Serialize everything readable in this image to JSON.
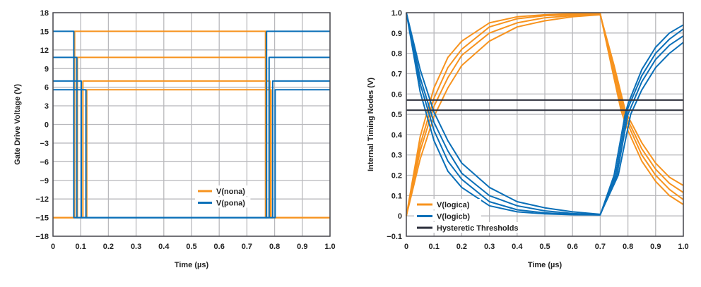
{
  "chart_data": [
    {
      "type": "line",
      "title": "",
      "xlabel": "Time (µs)",
      "ylabel": "Gate Drive Voltage (V)",
      "xlim": [
        0,
        1.0
      ],
      "ylim": [
        -18,
        18
      ],
      "xticks": [
        "0",
        "0.1",
        "0.2",
        "0.3",
        "0.4",
        "0.5",
        "0.6",
        "0.7",
        "0.8",
        "0.9",
        "1.0"
      ],
      "yticks": [
        "18",
        "15",
        "12",
        "9",
        "6",
        "3",
        "0",
        "−3",
        "−6",
        "−9",
        "−12",
        "−15",
        "−18"
      ],
      "grid": true,
      "legend_placement": "bottom-right",
      "series": [
        {
          "name": "V(nona)",
          "color": "#f7931e",
          "traces": [
            [
              [
                0,
                -15
              ],
              [
                0.078,
                -15
              ],
              [
                0.078,
                15
              ],
              [
                0.767,
                15
              ],
              [
                0.767,
                -15
              ],
              [
                1,
                -15
              ]
            ],
            [
              [
                0,
                -15
              ],
              [
                0.088,
                -15
              ],
              [
                0.088,
                10.8
              ],
              [
                0.769,
                10.8
              ],
              [
                0.769,
                -15
              ],
              [
                1,
                -15
              ]
            ],
            [
              [
                0,
                -15
              ],
              [
                0.108,
                -15
              ],
              [
                0.108,
                7
              ],
              [
                0.783,
                7
              ],
              [
                0.783,
                -15
              ],
              [
                1,
                -15
              ]
            ],
            [
              [
                0,
                -15
              ],
              [
                0.122,
                -15
              ],
              [
                0.122,
                5.6
              ],
              [
                0.787,
                5.6
              ],
              [
                0.787,
                -15
              ],
              [
                1,
                -15
              ]
            ]
          ]
        },
        {
          "name": "V(pona)",
          "color": "#0a6fb8",
          "traces": [
            [
              [
                0,
                15
              ],
              [
                0.075,
                15
              ],
              [
                0.075,
                -15
              ],
              [
                0.771,
                -15
              ],
              [
                0.771,
                15
              ],
              [
                1,
                15
              ]
            ],
            [
              [
                0,
                10.8
              ],
              [
                0.086,
                10.8
              ],
              [
                0.086,
                -15
              ],
              [
                0.78,
                -15
              ],
              [
                0.78,
                10.8
              ],
              [
                1,
                10.8
              ]
            ],
            [
              [
                0,
                7
              ],
              [
                0.102,
                7
              ],
              [
                0.102,
                -15
              ],
              [
                0.793,
                -15
              ],
              [
                0.793,
                7
              ],
              [
                1,
                7
              ]
            ],
            [
              [
                0,
                5.6
              ],
              [
                0.119,
                5.6
              ],
              [
                0.119,
                -15
              ],
              [
                0.802,
                -15
              ],
              [
                0.802,
                5.6
              ],
              [
                1,
                5.6
              ]
            ]
          ]
        }
      ]
    },
    {
      "type": "line",
      "title": "",
      "xlabel": "Time (µs)",
      "ylabel": "Internal Timing Nodes (V)",
      "xlim": [
        0,
        1.0
      ],
      "ylim": [
        -0.1,
        1.0
      ],
      "xticks": [
        "0",
        "0.1",
        "0.2",
        "0.3",
        "0.4",
        "0.5",
        "0.6",
        "0.7",
        "0.8",
        "0.9",
        "1.0"
      ],
      "yticks": [
        "1.0",
        "0.9",
        "0.8",
        "0.7",
        "0.6",
        "0.5",
        "0.4",
        "0.3",
        "0.2",
        "0.1",
        "0",
        "−0.1"
      ],
      "grid": true,
      "legend_placement": "bottom-left",
      "series": [
        {
          "name": "V(logica)",
          "color": "#f7931e",
          "traces": [
            [
              [
                0,
                0
              ],
              [
                0.05,
                0.39
              ],
              [
                0.1,
                0.63
              ],
              [
                0.15,
                0.78
              ],
              [
                0.2,
                0.86
              ],
              [
                0.3,
                0.95
              ],
              [
                0.4,
                0.98
              ],
              [
                0.5,
                0.99
              ],
              [
                0.6,
                0.995
              ],
              [
                0.7,
                0.995
              ],
              [
                0.74,
                0.74
              ],
              [
                0.775,
                0.52
              ],
              [
                0.8,
                0.42
              ],
              [
                0.85,
                0.27
              ],
              [
                0.9,
                0.17
              ],
              [
                0.95,
                0.1
              ],
              [
                1.0,
                0.056
              ]
            ],
            [
              [
                0,
                0
              ],
              [
                0.05,
                0.35
              ],
              [
                0.1,
                0.58
              ],
              [
                0.15,
                0.73
              ],
              [
                0.2,
                0.82
              ],
              [
                0.3,
                0.93
              ],
              [
                0.4,
                0.97
              ],
              [
                0.5,
                0.985
              ],
              [
                0.6,
                0.99
              ],
              [
                0.7,
                0.995
              ],
              [
                0.74,
                0.75
              ],
              [
                0.78,
                0.52
              ],
              [
                0.8,
                0.45
              ],
              [
                0.85,
                0.3
              ],
              [
                0.9,
                0.2
              ],
              [
                0.95,
                0.13
              ],
              [
                1.0,
                0.08
              ]
            ],
            [
              [
                0,
                0
              ],
              [
                0.05,
                0.32
              ],
              [
                0.1,
                0.54
              ],
              [
                0.15,
                0.68
              ],
              [
                0.2,
                0.79
              ],
              [
                0.3,
                0.9
              ],
              [
                0.4,
                0.95
              ],
              [
                0.5,
                0.975
              ],
              [
                0.6,
                0.985
              ],
              [
                0.7,
                0.99
              ],
              [
                0.745,
                0.75
              ],
              [
                0.785,
                0.52
              ],
              [
                0.8,
                0.47
              ],
              [
                0.85,
                0.33
              ],
              [
                0.9,
                0.23
              ],
              [
                0.95,
                0.16
              ],
              [
                1.0,
                0.115
              ]
            ],
            [
              [
                0,
                0
              ],
              [
                0.05,
                0.28
              ],
              [
                0.1,
                0.49
              ],
              [
                0.15,
                0.63
              ],
              [
                0.2,
                0.74
              ],
              [
                0.3,
                0.86
              ],
              [
                0.4,
                0.93
              ],
              [
                0.5,
                0.96
              ],
              [
                0.6,
                0.98
              ],
              [
                0.7,
                0.99
              ],
              [
                0.75,
                0.74
              ],
              [
                0.79,
                0.52
              ],
              [
                0.8,
                0.49
              ],
              [
                0.85,
                0.36
              ],
              [
                0.9,
                0.26
              ],
              [
                0.95,
                0.19
              ],
              [
                1.0,
                0.15
              ]
            ]
          ]
        },
        {
          "name": "V(logicb)",
          "color": "#0a6fb8",
          "traces": [
            [
              [
                0,
                1
              ],
              [
                0.05,
                0.61
              ],
              [
                0.1,
                0.37
              ],
              [
                0.15,
                0.22
              ],
              [
                0.2,
                0.14
              ],
              [
                0.3,
                0.05
              ],
              [
                0.4,
                0.02
              ],
              [
                0.5,
                0.01
              ],
              [
                0.6,
                0.006
              ],
              [
                0.7,
                0.005
              ],
              [
                0.75,
                0.2
              ],
              [
                0.79,
                0.5
              ],
              [
                0.8,
                0.55
              ],
              [
                0.85,
                0.72
              ],
              [
                0.9,
                0.83
              ],
              [
                0.95,
                0.9
              ],
              [
                1.0,
                0.94
              ]
            ],
            [
              [
                0,
                1
              ],
              [
                0.05,
                0.65
              ],
              [
                0.1,
                0.42
              ],
              [
                0.15,
                0.27
              ],
              [
                0.2,
                0.18
              ],
              [
                0.3,
                0.07
              ],
              [
                0.4,
                0.03
              ],
              [
                0.5,
                0.015
              ],
              [
                0.6,
                0.008
              ],
              [
                0.7,
                0.005
              ],
              [
                0.755,
                0.2
              ],
              [
                0.795,
                0.5
              ],
              [
                0.8,
                0.53
              ],
              [
                0.85,
                0.69
              ],
              [
                0.9,
                0.8
              ],
              [
                0.95,
                0.87
              ],
              [
                1.0,
                0.92
              ]
            ],
            [
              [
                0,
                1
              ],
              [
                0.05,
                0.68
              ],
              [
                0.1,
                0.46
              ],
              [
                0.15,
                0.32
              ],
              [
                0.2,
                0.21
              ],
              [
                0.3,
                0.1
              ],
              [
                0.4,
                0.05
              ],
              [
                0.5,
                0.025
              ],
              [
                0.6,
                0.012
              ],
              [
                0.7,
                0.006
              ],
              [
                0.76,
                0.2
              ],
              [
                0.8,
                0.5
              ],
              [
                0.85,
                0.66
              ],
              [
                0.9,
                0.77
              ],
              [
                0.95,
                0.84
              ],
              [
                1.0,
                0.886
              ]
            ],
            [
              [
                0,
                1
              ],
              [
                0.05,
                0.72
              ],
              [
                0.1,
                0.51
              ],
              [
                0.15,
                0.37
              ],
              [
                0.2,
                0.26
              ],
              [
                0.3,
                0.14
              ],
              [
                0.4,
                0.07
              ],
              [
                0.5,
                0.04
              ],
              [
                0.6,
                0.02
              ],
              [
                0.7,
                0.008
              ],
              [
                0.765,
                0.2
              ],
              [
                0.81,
                0.5
              ],
              [
                0.85,
                0.62
              ],
              [
                0.9,
                0.73
              ],
              [
                0.95,
                0.8
              ],
              [
                1.0,
                0.854
              ]
            ]
          ]
        },
        {
          "name": "Hysteretic Thresholds",
          "color": "#2b2e3a",
          "traces": [
            [
              [
                0,
                0.57
              ],
              [
                1,
                0.57
              ]
            ],
            [
              [
                0,
                0.52
              ],
              [
                1,
                0.52
              ]
            ]
          ]
        }
      ]
    }
  ]
}
